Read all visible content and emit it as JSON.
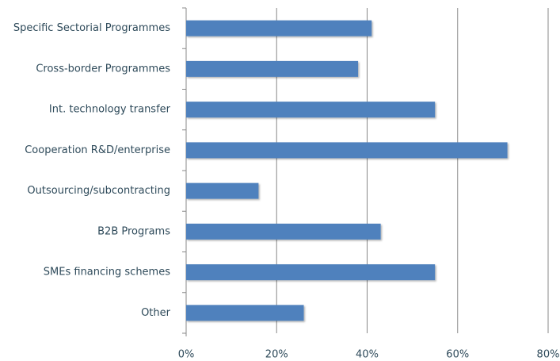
{
  "chart_data": {
    "type": "hbar",
    "categories": [
      "Specific Sectorial Programmes",
      "Cross-border Programmes",
      "Int. technology transfer",
      "Cooperation R&D/enterprise",
      "Outsourcing/subcontracting",
      "B2B Programs",
      "SMEs financing schemes",
      "Other"
    ],
    "values": [
      41,
      38,
      55,
      71,
      16,
      43,
      55,
      26
    ],
    "color": "#4f81bd",
    "xlim": [
      0,
      80
    ],
    "xticks": [
      {
        "value": 0,
        "label": "0%"
      },
      {
        "value": 20,
        "label": "20%"
      },
      {
        "value": 40,
        "label": "40%"
      },
      {
        "value": 60,
        "label": "60%"
      },
      {
        "value": 80,
        "label": "80%"
      }
    ],
    "grid": true
  }
}
